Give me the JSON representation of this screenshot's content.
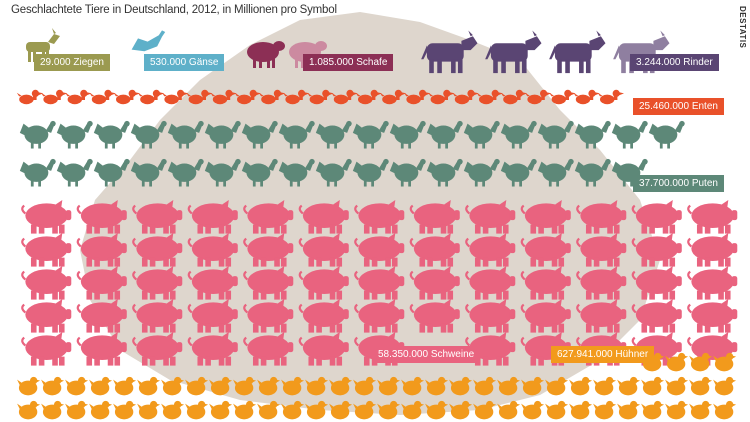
{
  "title": "Geschlachtete Tiere in Deutschland, 2012, in Millionen pro Symbol",
  "source": "DESTATIS",
  "colors": {
    "background_map": "#d8cfc4",
    "goats": "#9b9a50",
    "geese": "#5eb0c9",
    "sheep": "#8c2f55",
    "sheep_light": "#cc8aa0",
    "cattle": "#5a4573",
    "cattle_light": "#8f7fa0",
    "ducks": "#e9512a",
    "turkeys": "#5d8878",
    "pigs": "#e9637f",
    "chickens": "#f29a1c",
    "label_text": "#ffffff"
  },
  "chart_data": {
    "type": "pictogram",
    "title": "Geschlachtete Tiere in Deutschland, 2012, in Millionen pro Symbol",
    "unit": "Millionen pro Symbol",
    "series": [
      {
        "name": "Ziegen",
        "label": "29.000 Ziegen",
        "value": 29000,
        "icon": "goat-icon"
      },
      {
        "name": "Gänse",
        "label": "530.000 Gänse",
        "value": 530000,
        "icon": "goose-icon"
      },
      {
        "name": "Schafe",
        "label": "1.085.000 Schafe",
        "value": 1085000,
        "icon": "sheep-icon"
      },
      {
        "name": "Rinder",
        "label": "3.244.000 Rinder",
        "value": 3244000,
        "icon": "cow-icon"
      },
      {
        "name": "Enten",
        "label": "25.460.000 Enten",
        "value": 25460000,
        "icon": "duck-icon"
      },
      {
        "name": "Puten",
        "label": "37.700.000 Puten",
        "value": 37700000,
        "icon": "turkey-icon"
      },
      {
        "name": "Schweine",
        "label": "58.350.000 Schweine",
        "value": 58350000,
        "icon": "pig-icon"
      },
      {
        "name": "Hühner",
        "label": "627.941.000 Hühner",
        "value": 627941000,
        "icon": "chicken-icon"
      }
    ]
  }
}
